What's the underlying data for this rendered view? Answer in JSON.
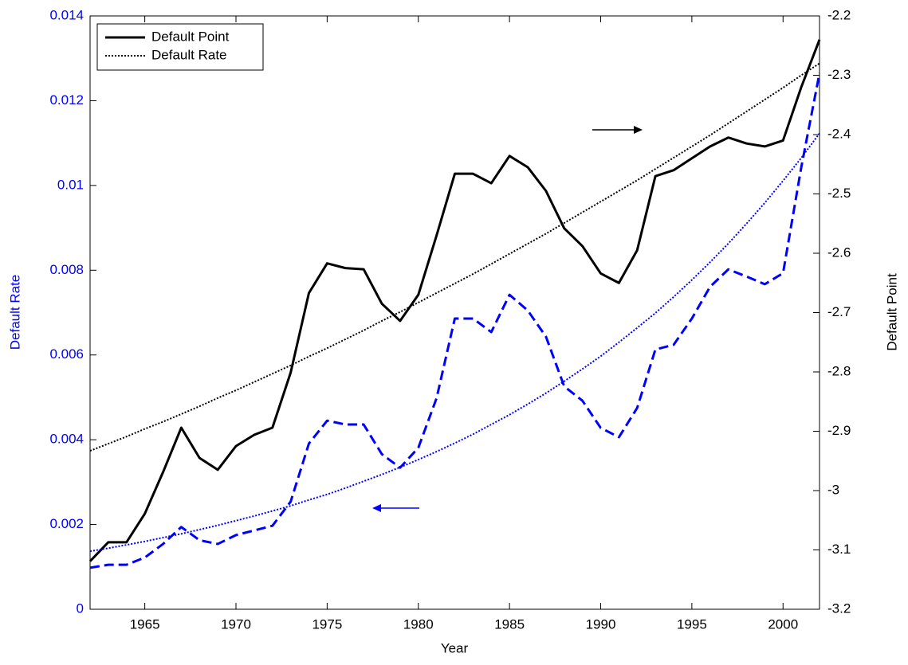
{
  "chart_data": {
    "type": "line",
    "x_label": "Year",
    "y_label": "Default Rate",
    "y2_label": "Default Point",
    "x": [
      1962,
      1963,
      1964,
      1965,
      1966,
      1967,
      1968,
      1969,
      1970,
      1971,
      1972,
      1973,
      1974,
      1975,
      1976,
      1977,
      1978,
      1979,
      1980,
      1981,
      1982,
      1983,
      1984,
      1985,
      1986,
      1987,
      1988,
      1989,
      1990,
      1991,
      1992,
      1993,
      1994,
      1995,
      1996,
      1997,
      1998,
      1999,
      2000,
      2001,
      2002
    ],
    "xlim": [
      1962,
      2002
    ],
    "xticks": [
      1965,
      1970,
      1975,
      1980,
      1985,
      1990,
      1995,
      2000
    ],
    "ylim": [
      0,
      0.014
    ],
    "yticks": [
      0,
      0.002,
      0.004,
      0.006,
      0.008,
      0.01,
      0.012,
      0.014
    ],
    "y2lim": [
      -3.2,
      -2.2
    ],
    "y2ticks": [
      -3.2,
      -3.1,
      -3,
      -2.9,
      -2.8,
      -2.7,
      -2.6,
      -2.5,
      -2.4,
      -2.3,
      -2.2
    ],
    "y_color": "#0000ff",
    "y2_color": "#000000",
    "grid": false,
    "legend": "top-left",
    "series": [
      {
        "name": "Default Point",
        "color": "#000000",
        "style": "solid",
        "axis": "y2",
        "values": [
          -3.119,
          -3.087,
          -3.087,
          -3.039,
          -2.969,
          -2.894,
          -2.945,
          -2.965,
          -2.925,
          -2.906,
          -2.894,
          -2.801,
          -2.667,
          -2.617,
          -2.625,
          -2.627,
          -2.685,
          -2.714,
          -2.67,
          -2.57,
          -2.466,
          -2.466,
          -2.482,
          -2.436,
          -2.455,
          -2.495,
          -2.558,
          -2.588,
          -2.634,
          -2.65,
          -2.595,
          -2.47,
          -2.46,
          -2.44,
          -2.42,
          -2.405,
          -2.415,
          -2.42,
          -2.41,
          -2.32,
          -2.24
        ]
      },
      {
        "name": "Default Rate",
        "color": "#000000",
        "style": "dotted",
        "axis": "y2",
        "values": [
          -2.933,
          -2.921,
          -2.909,
          -2.896,
          -2.884,
          -2.871,
          -2.858,
          -2.844,
          -2.831,
          -2.817,
          -2.803,
          -2.789,
          -2.774,
          -2.76,
          -2.745,
          -2.73,
          -2.714,
          -2.699,
          -2.683,
          -2.667,
          -2.651,
          -2.635,
          -2.618,
          -2.601,
          -2.584,
          -2.567,
          -2.549,
          -2.531,
          -2.513,
          -2.495,
          -2.477,
          -2.458,
          -2.439,
          -2.42,
          -2.401,
          -2.381,
          -2.361,
          -2.341,
          -2.321,
          -2.3,
          -2.28
        ]
      },
      {
        "color": "#0000ff",
        "style": "dashed",
        "values": [
          0.00098,
          0.00105,
          0.00105,
          0.00122,
          0.00154,
          0.00194,
          0.00163,
          0.00154,
          0.00175,
          0.00186,
          0.00197,
          0.00254,
          0.00391,
          0.00445,
          0.00436,
          0.00436,
          0.00366,
          0.00334,
          0.00381,
          0.00498,
          0.00686,
          0.00686,
          0.00654,
          0.00742,
          0.00705,
          0.00643,
          0.00526,
          0.00492,
          0.00428,
          0.00406,
          0.00475,
          0.00613,
          0.00624,
          0.00686,
          0.00761,
          0.00802,
          0.00785,
          0.00767,
          0.00793,
          0.01043,
          0.01265
        ]
      },
      {
        "color": "#0000ff",
        "style": "dotted",
        "values": [
          0.00137,
          0.00144,
          0.00152,
          0.0016,
          0.00169,
          0.00178,
          0.00188,
          0.00198,
          0.00209,
          0.0022,
          0.00232,
          0.00244,
          0.00258,
          0.00271,
          0.00286,
          0.00302,
          0.00318,
          0.00335,
          0.00353,
          0.00372,
          0.00392,
          0.00413,
          0.00436,
          0.00459,
          0.00484,
          0.0051,
          0.00538,
          0.00567,
          0.00597,
          0.0063,
          0.00664,
          0.00699,
          0.00737,
          0.00777,
          0.00819,
          0.00863,
          0.0091,
          0.00959,
          0.01011,
          0.01065,
          0.01123
        ]
      }
    ]
  }
}
